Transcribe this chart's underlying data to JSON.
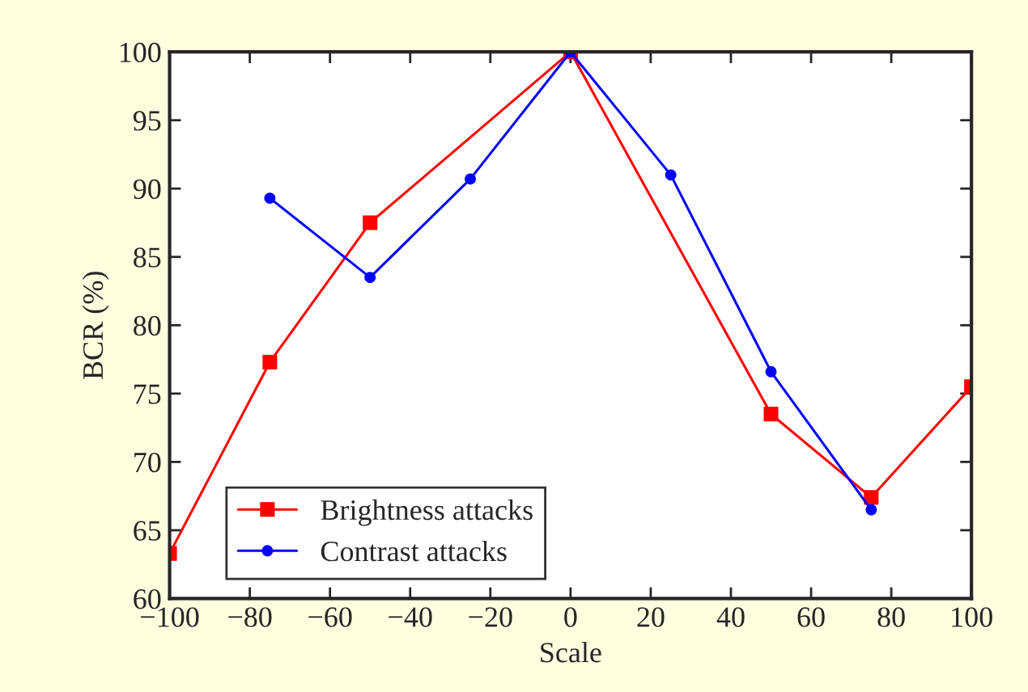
{
  "chart_data": {
    "type": "line",
    "xlabel": "Scale",
    "ylabel": "BCR (%)",
    "xlim": [
      -100,
      100
    ],
    "xticks": [
      -100,
      -80,
      -60,
      -40,
      -20,
      0,
      20,
      40,
      60,
      80,
      100
    ],
    "ylim": [
      60,
      100
    ],
    "yticks": [
      60,
      65,
      70,
      75,
      80,
      85,
      90,
      95,
      100
    ],
    "grid": false,
    "legend": "bottom left",
    "series": [
      {
        "name": "Brightness attacks",
        "color": "#ff0000",
        "marker": "square",
        "x": [
          -100,
          -75,
          -50,
          0,
          50,
          75,
          100
        ],
        "values": [
          63.3,
          77.3,
          87.5,
          100,
          73.5,
          67.4,
          75.5
        ]
      },
      {
        "name": "Contrast attacks",
        "color": "#0000ff",
        "marker": "circle",
        "x": [
          -75,
          -50,
          -25,
          0,
          25,
          50,
          75
        ],
        "values": [
          89.3,
          83.5,
          90.7,
          100,
          91.0,
          76.6,
          66.5
        ]
      }
    ]
  }
}
